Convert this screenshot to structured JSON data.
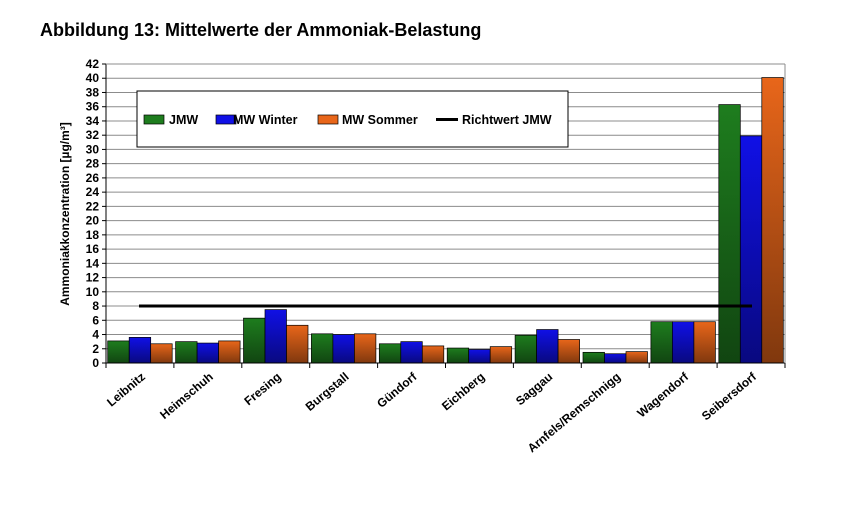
{
  "title": "Abbildung 13: Mittelwerte der Ammoniak-Belastung",
  "chart_data": {
    "type": "bar",
    "title": "Abbildung 13: Mittelwerte der Ammoniak-Belastung",
    "ylabel": "Ammoniakkonzentration [µg/m³]",
    "xlabel": "",
    "ylim": [
      0,
      42
    ],
    "ytick_step": 2,
    "grid": true,
    "legend_position": "top",
    "categories": [
      "Leibnitz",
      "Heimschuh",
      "Fresing",
      "Burgstall",
      "Gündorf",
      "Eichberg",
      "Saggau",
      "Arnfels/Remschnigg",
      "Wagendorf",
      "Seibersdorf"
    ],
    "series": [
      {
        "name": "JMW",
        "color": "#1e7d1e",
        "values": [
          3.1,
          3.0,
          6.3,
          4.1,
          2.7,
          2.1,
          3.9,
          1.5,
          5.8,
          36.3
        ]
      },
      {
        "name": "MW Winter",
        "color": "#1010e6",
        "values": [
          3.6,
          2.8,
          7.5,
          4.0,
          3.0,
          1.9,
          4.7,
          1.3,
          5.8,
          31.9
        ]
      },
      {
        "name": "MW Sommer",
        "color": "#e8661a",
        "values": [
          2.7,
          3.1,
          5.3,
          4.1,
          2.4,
          2.3,
          3.3,
          1.6,
          5.8,
          40.1
        ]
      }
    ],
    "reference_line": {
      "name": "Richtwert JMW",
      "value": 8,
      "color": "#000000"
    }
  }
}
